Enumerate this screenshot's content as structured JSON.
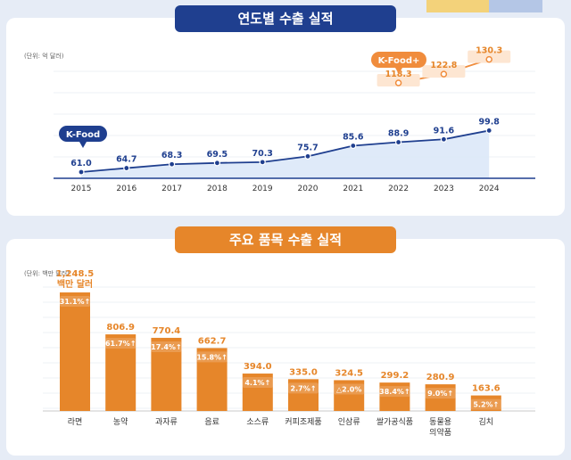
{
  "title1": "연도별 수출 실적",
  "title2": "주요 품목 수출 실적",
  "unit1": "(단위: 억 달러)",
  "unit2": "(단위: 백만 달러)",
  "chart_data": [
    {
      "type": "line",
      "title": "연도별 수출 실적",
      "x": [
        "2015",
        "2016",
        "2017",
        "2018",
        "2019",
        "2020",
        "2021",
        "2022",
        "2023",
        "2024"
      ],
      "series": [
        {
          "name": "K-Food",
          "values": [
            61.0,
            64.7,
            68.3,
            69.5,
            70.3,
            75.7,
            85.6,
            88.9,
            91.6,
            99.8
          ],
          "labels": [
            "61.0",
            "64.7",
            "68.3",
            "69.5",
            "70.3",
            "75.7",
            "85.6",
            "88.9",
            "91.6",
            "99.8"
          ],
          "color": "#1f3f8f"
        },
        {
          "name": "K-Food+",
          "x": [
            "2022",
            "2023",
            "2024"
          ],
          "values": [
            118.3,
            122.8,
            130.3
          ],
          "labels": [
            "118.3",
            "122.8",
            "130.3"
          ],
          "color": "#f08c3c"
        }
      ],
      "series_tags": [
        "K-Food",
        "K-Food+"
      ]
    },
    {
      "type": "bar",
      "title": "주요 품목 수출 실적",
      "categories": [
        "라면",
        "농약",
        "과자류",
        "음료",
        "소스류",
        "커피조제품",
        "인삼류",
        "쌀가공식품",
        "동물용\n의약품",
        "김치"
      ],
      "category_lines": [
        [
          "라면"
        ],
        [
          "농약"
        ],
        [
          "과자류"
        ],
        [
          "음료"
        ],
        [
          "소스류"
        ],
        [
          "커피조제품"
        ],
        [
          "인삼류"
        ],
        [
          "쌀가공식품"
        ],
        [
          "동물용",
          "의약품"
        ],
        [
          "김치"
        ]
      ],
      "values": [
        1248.5,
        806.9,
        770.4,
        662.7,
        394.0,
        335.0,
        324.5,
        299.2,
        280.9,
        163.6
      ],
      "value_labels": [
        "1,248.5",
        "806.9",
        "770.4",
        "662.7",
        "394.0",
        "335.0",
        "324.5",
        "299.2",
        "280.9",
        "163.6"
      ],
      "first_unit_label": "백만 달러",
      "changes": [
        "31.1%↑",
        "61.7%↑",
        "17.4%↑",
        "15.8%↑",
        "4.1%↑",
        "2.7%↑",
        "△2.0%",
        "38.4%↑",
        "9.0%↑",
        "5.2%↑"
      ],
      "bar_color": "#e6862a",
      "label_color": "#e6862a"
    }
  ]
}
